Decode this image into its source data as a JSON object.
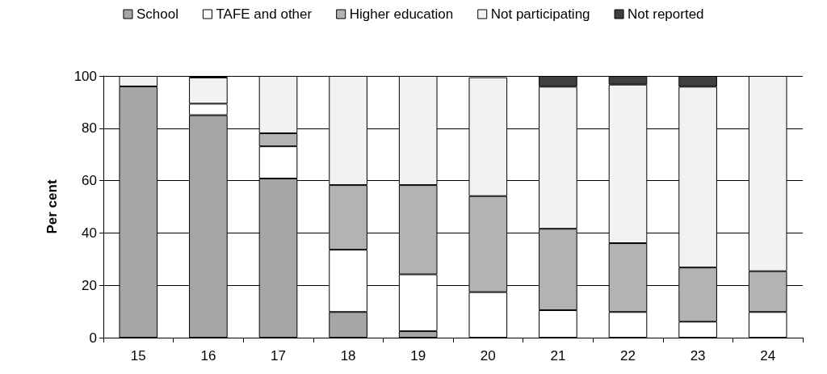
{
  "chart_data": {
    "type": "bar",
    "stacked": true,
    "ylabel": "Per cent",
    "categories": [
      "15",
      "16",
      "17",
      "18",
      "19",
      "20",
      "21",
      "22",
      "23",
      "24"
    ],
    "series": [
      {
        "name": "School",
        "color": "#a6a6a6",
        "values": [
          96,
          85,
          60.8,
          9.8,
          2.5,
          null,
          0,
          0,
          0,
          0
        ]
      },
      {
        "name": "TAFE and other",
        "color": "#ffffff",
        "values": [
          0,
          4.4,
          12.3,
          23.8,
          21.7,
          17.4,
          10.5,
          9.8,
          6.1,
          9.8
        ]
      },
      {
        "name": "Higher education",
        "color": "#b3b3b3",
        "values": [
          0,
          0,
          5,
          24.7,
          34.1,
          36.7,
          31.1,
          26.3,
          20.7,
          15.6
        ]
      },
      {
        "name": "Not participating",
        "color": "#f2f2f2",
        "values": [
          4,
          10,
          21.9,
          41.7,
          41.7,
          45.4,
          54.3,
          60.6,
          69.1,
          74.6
        ]
      },
      {
        "name": "Not reported",
        "color": "#404040",
        "values": [
          0,
          0.6,
          0,
          0,
          0,
          0,
          4.1,
          3.3,
          4.1,
          0
        ]
      }
    ],
    "ylim": [
      0,
      100
    ],
    "yticks": [
      0,
      20,
      40,
      60,
      80,
      100
    ],
    "grid": "y",
    "legend": "top"
  }
}
